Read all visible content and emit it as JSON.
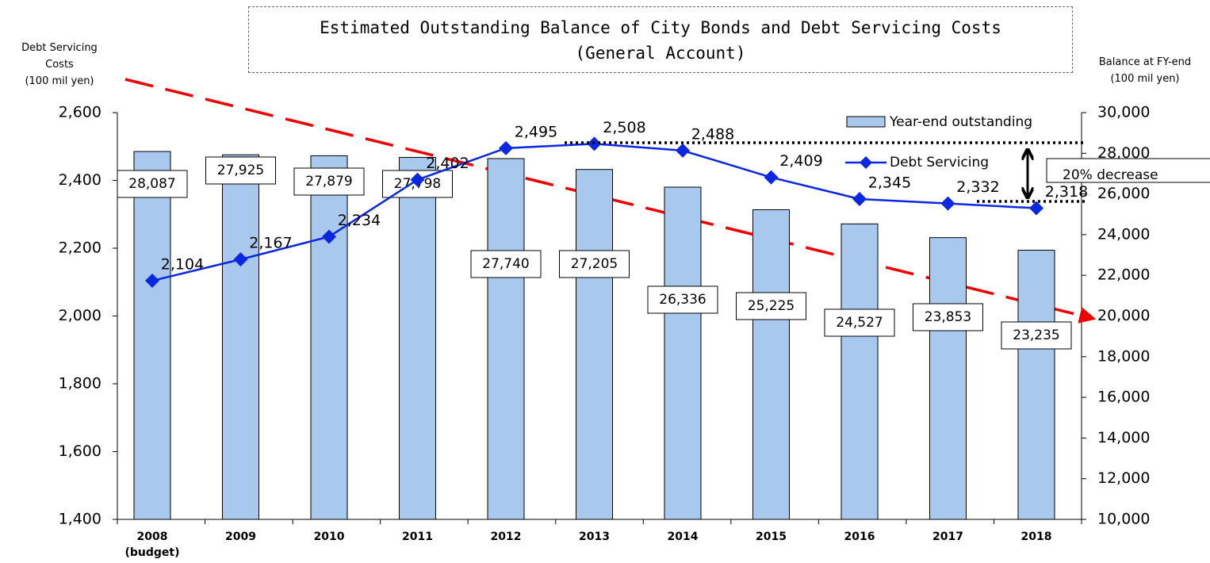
{
  "chart_data": {
    "type": "bar+line",
    "title": "Estimated Outstanding Balance of City Bonds and Debt Servicing Costs",
    "subtitle": "(General Account)",
    "y_label": "Debt Servicing\nCosts\n(100 mil yen)",
    "y2_label": "Balance at FY-end\n(100 mil yen)",
    "annotation": "20% decrease",
    "categories": [
      "2008\n(budget)",
      "2009",
      "2010",
      "2011",
      "2012",
      "2013",
      "2014",
      "2015",
      "2016",
      "2017",
      "2018"
    ],
    "series": [
      {
        "name": "Year-end outstanding",
        "type": "bar",
        "axis": "y2",
        "color": "#a9c8ee",
        "values": [
          28087,
          27925,
          27879,
          27798,
          27740,
          27205,
          26336,
          25225,
          24527,
          23853,
          23235
        ],
        "value_labels": [
          "28,087",
          "27,925",
          "27,879",
          "27,798",
          "27,740",
          "27,205",
          "26,336",
          "25,225",
          "24,527",
          "23,853",
          "23,235"
        ]
      },
      {
        "name": "Debt Servicing",
        "type": "line",
        "axis": "y",
        "color": "#0a28e0",
        "values": [
          2104,
          2167,
          2234,
          2402,
          2495,
          2508,
          2488,
          2409,
          2345,
          2332,
          2318
        ],
        "value_labels": [
          "2,104",
          "2,167",
          "2,234",
          "2,402",
          "2,495",
          "2,508",
          "2,488",
          "2,409",
          "2,345",
          "2,332",
          "2,318"
        ]
      }
    ],
    "ylim": [
      1400,
      2600
    ],
    "yticks": [
      {
        "value": 1400,
        "label": "1,400"
      },
      {
        "value": 1600,
        "label": "1,600"
      },
      {
        "value": 1800,
        "label": "1,800"
      },
      {
        "value": 2000,
        "label": "2,000"
      },
      {
        "value": 2200,
        "label": "2,200"
      },
      {
        "value": 2400,
        "label": "2,400"
      },
      {
        "value": 2600,
        "label": "2,600"
      }
    ],
    "y2lim": [
      10000,
      30000
    ],
    "y2ticks": [
      {
        "value": 10000,
        "label": "10,000"
      },
      {
        "value": 12000,
        "label": "12,000"
      },
      {
        "value": 14000,
        "label": "14,000"
      },
      {
        "value": 16000,
        "label": "16,000"
      },
      {
        "value": 18000,
        "label": "18,000"
      },
      {
        "value": 20000,
        "label": "20,000"
      },
      {
        "value": 22000,
        "label": "22,000"
      },
      {
        "value": 24000,
        "label": "24,000"
      },
      {
        "value": 26000,
        "label": "26,000"
      },
      {
        "value": 28000,
        "label": "28,000"
      },
      {
        "value": 30000,
        "label": "30,000"
      }
    ],
    "legend": "upper right"
  }
}
